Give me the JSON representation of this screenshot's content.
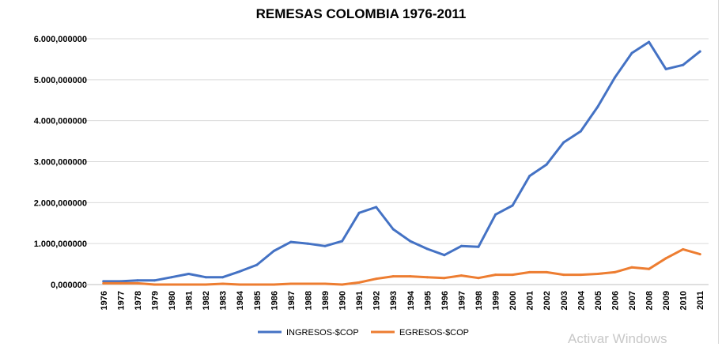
{
  "chart_data": {
    "type": "line",
    "title": "REMESAS COLOMBIA 1976-2011",
    "xlabel": "",
    "ylabel": "",
    "categories": [
      "1976",
      "1977",
      "1978",
      "1979",
      "1980",
      "1981",
      "1982",
      "1983",
      "1984",
      "1985",
      "1986",
      "1987",
      "1988",
      "1989",
      "1990",
      "1991",
      "1992",
      "1993",
      "1994",
      "1995",
      "1996",
      "1997",
      "1998",
      "1999",
      "2000",
      "2001",
      "2002",
      "2003",
      "2004",
      "2005",
      "2006",
      "2007",
      "2008",
      "2009",
      "2010",
      "2011"
    ],
    "ylim": [
      0,
      6000000000
    ],
    "y_ticks": [
      0,
      1000000000,
      2000000000,
      3000000000,
      4000000000,
      5000000000,
      6000000000
    ],
    "y_tick_labels": [
      "0,000000",
      "1.000,000000",
      "2.000,000000",
      "3.000,000000",
      "4.000,000000",
      "5.000,000000",
      "6.000,000000"
    ],
    "grid": "horizontal",
    "legend_position": "bottom",
    "series": [
      {
        "name": "INGRESOS-$COP",
        "color": "#4472c4",
        "values": [
          80000000,
          80000000,
          100000000,
          100000000,
          180000000,
          260000000,
          180000000,
          180000000,
          320000000,
          480000000,
          820000000,
          1040000000,
          1000000000,
          940000000,
          1060000000,
          1750000000,
          1890000000,
          1350000000,
          1060000000,
          870000000,
          720000000,
          940000000,
          920000000,
          1710000000,
          1930000000,
          2650000000,
          2930000000,
          3470000000,
          3740000000,
          4340000000,
          5050000000,
          5650000000,
          5920000000,
          5260000000,
          5360000000,
          5690000000
        ]
      },
      {
        "name": "EGRESOS-$COP",
        "color": "#ed7d31",
        "values": [
          30000000,
          30000000,
          30000000,
          0,
          0,
          0,
          0,
          20000000,
          0,
          0,
          0,
          20000000,
          20000000,
          20000000,
          0,
          50000000,
          140000000,
          200000000,
          200000000,
          180000000,
          160000000,
          220000000,
          160000000,
          240000000,
          240000000,
          300000000,
          300000000,
          240000000,
          240000000,
          260000000,
          300000000,
          420000000,
          380000000,
          640000000,
          860000000,
          740000000
        ]
      }
    ]
  },
  "watermark": "Activar Windows",
  "colors": {
    "grid": "#d9d9d9",
    "axis": "#bfbfbf",
    "text": "#000000"
  }
}
